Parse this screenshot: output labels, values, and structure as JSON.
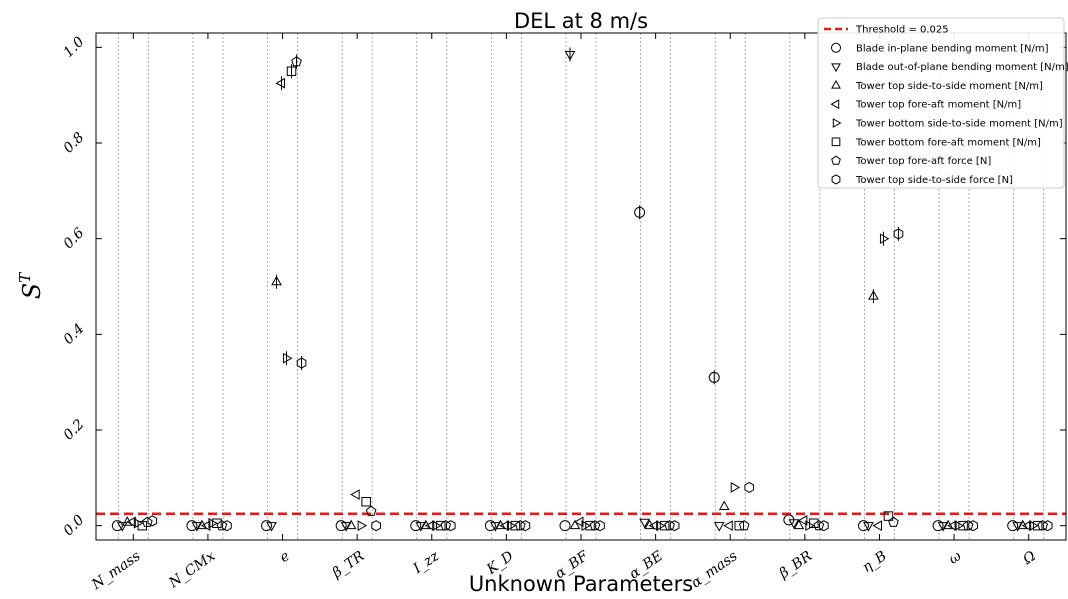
{
  "chart_data": {
    "type": "scatter",
    "title": "DEL at 8 m/s",
    "xlabel": "Unknown Parameters",
    "ylabel": "S^T",
    "ylim": [
      -0.03,
      1.03
    ],
    "yticks": [
      "0.0",
      "0.2",
      "0.4",
      "0.6",
      "0.8",
      "1.0"
    ],
    "ytick_values": [
      0.0,
      0.2,
      0.4,
      0.6,
      0.8,
      1.0
    ],
    "grid": "x-dotted",
    "legend_position": "top-right",
    "categories": [
      "N_mass",
      "N_CMx",
      "e",
      "β_TR",
      "I_zz",
      "K_D",
      "α_BF",
      "α_BE",
      "α_mass",
      "β_BR",
      "η_B",
      "ω",
      "Ω"
    ],
    "threshold": {
      "name": "Threshold = 0.025",
      "value": 0.025,
      "color": "#e41a1c"
    },
    "series": [
      {
        "name": "Blade in-plane bending moment [N/m]",
        "marker": "circle",
        "values": [
          0.0,
          0.0,
          0.0,
          0.0,
          0.0,
          0.0,
          0.0,
          0.655,
          0.31,
          0.012,
          0.0,
          0.0,
          0.0
        ]
      },
      {
        "name": "Blade out-of-plane bending moment [N/m]",
        "marker": "triangle-down",
        "values": [
          0.0,
          0.0,
          0.0,
          0.0,
          0.0,
          0.0,
          0.985,
          0.007,
          0.0,
          0.006,
          0.0,
          0.0,
          0.0
        ]
      },
      {
        "name": "Tower top side-to-side moment [N/m]",
        "marker": "triangle-up",
        "values": [
          0.007,
          0.0,
          0.51,
          0.0,
          0.0,
          0.0,
          0.0,
          0.0,
          0.04,
          0.0,
          0.48,
          0.0,
          0.0
        ]
      },
      {
        "name": "Tower top fore-aft moment [N/m]",
        "marker": "triangle-left",
        "values": [
          0.008,
          0.0,
          0.925,
          0.065,
          0.0,
          0.0,
          0.008,
          0.0,
          0.0,
          0.011,
          0.0,
          0.0,
          0.0
        ]
      },
      {
        "name": "Tower bottom side-to-side moment [N/m]",
        "marker": "triangle-right",
        "values": [
          0.005,
          0.005,
          0.35,
          0.0,
          0.0,
          0.0,
          0.0,
          0.0,
          0.08,
          0.0,
          0.6,
          0.0,
          0.0
        ]
      },
      {
        "name": "Tower bottom fore-aft moment [N/m]",
        "marker": "square",
        "values": [
          0.0,
          0.005,
          0.95,
          0.05,
          0.0,
          0.0,
          0.0,
          0.0,
          0.0,
          0.005,
          0.02,
          0.0,
          0.0
        ]
      },
      {
        "name": "Tower top fore-aft force [N]",
        "marker": "pentagon",
        "values": [
          0.007,
          0.0,
          0.97,
          0.03,
          0.0,
          0.0,
          0.0,
          0.0,
          0.0,
          0.0,
          0.007,
          0.0,
          0.0
        ]
      },
      {
        "name": "Tower top side-to-side force [N]",
        "marker": "hexagon",
        "values": [
          0.01,
          0.0,
          0.34,
          0.0,
          0.0,
          0.0,
          0.0,
          0.0,
          0.08,
          0.0,
          0.61,
          0.0,
          0.0
        ]
      }
    ]
  }
}
